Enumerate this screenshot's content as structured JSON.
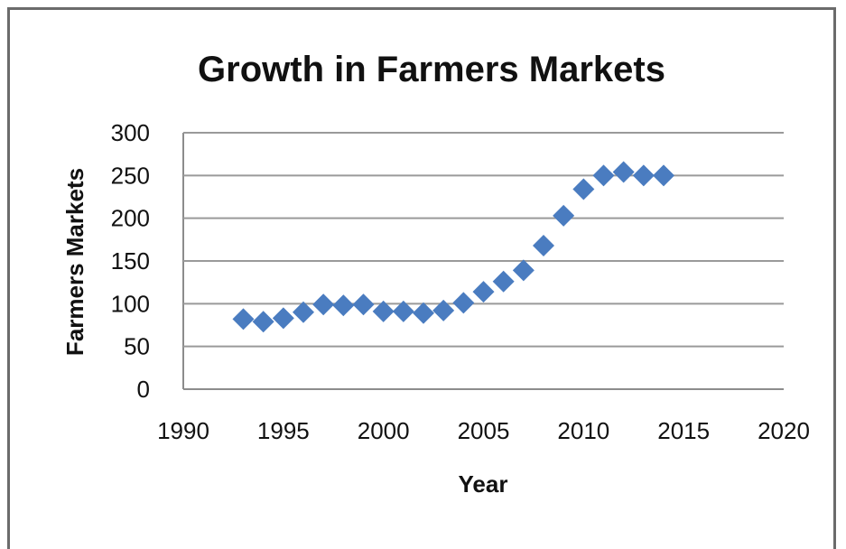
{
  "chart_data": {
    "type": "scatter",
    "title": "Growth in Farmers Markets",
    "xlabel": "Year",
    "ylabel": "Farmers Markets",
    "xlim": [
      1990,
      2020
    ],
    "ylim": [
      0,
      300
    ],
    "x_ticks": [
      "1990",
      "1995",
      "2000",
      "2005",
      "2010",
      "2015",
      "2020"
    ],
    "y_ticks": [
      "0",
      "50",
      "100",
      "150",
      "200",
      "250",
      "300"
    ],
    "grid": "horizontal",
    "legend": "none",
    "marker_color": "#4a7cc0",
    "series": [
      {
        "x": [
          1993,
          1994,
          1995,
          1996,
          1997,
          1998,
          1999,
          2000,
          2001,
          2002,
          2003,
          2004,
          2005,
          2006,
          2007,
          2008,
          2009,
          2010,
          2011,
          2012,
          2013,
          2014
        ],
        "y": [
          82,
          79,
          83,
          90,
          99,
          98,
          99,
          91,
          91,
          89,
          92,
          101,
          114,
          126,
          139,
          168,
          203,
          234,
          250,
          254,
          250,
          250
        ]
      }
    ]
  }
}
